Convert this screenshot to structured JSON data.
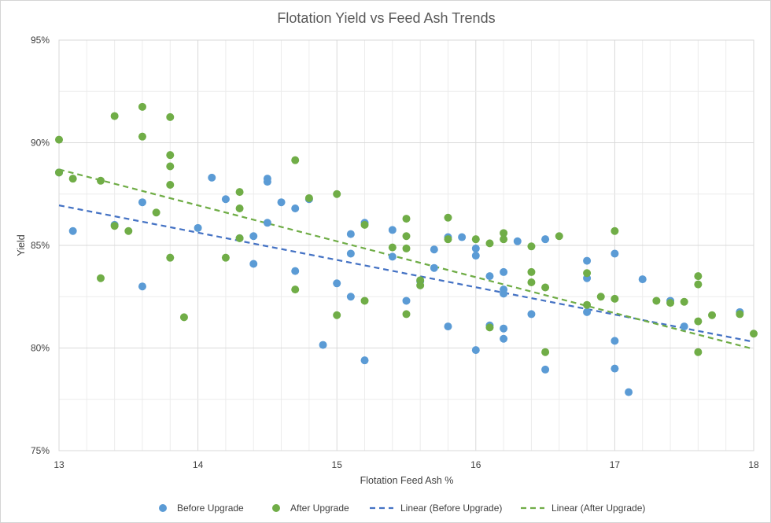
{
  "chart_data": {
    "type": "scatter",
    "title": "Flotation Yield vs Feed Ash Trends",
    "xlabel": "Flotation Feed Ash %",
    "ylabel": "Yield",
    "xlim": [
      13,
      18
    ],
    "ylim": [
      75,
      95
    ],
    "x_ticks": [
      13,
      14,
      15,
      16,
      17,
      18
    ],
    "x_tick_labels": [
      "13",
      "14",
      "15",
      "16",
      "17",
      "18"
    ],
    "y_ticks": [
      75,
      80,
      85,
      90,
      95
    ],
    "y_tick_labels": [
      "75%",
      "80%",
      "85%",
      "90%",
      "95%"
    ],
    "x_minor_gridline_step": 0.2,
    "y_minor_gridline_step": 2.5,
    "grid": true,
    "legend_position": "bottom",
    "series": [
      {
        "name": "Before Upgrade",
        "kind": "points",
        "color": "#5b9bd5",
        "points": [
          [
            13.0,
            88.55
          ],
          [
            13.1,
            85.7
          ],
          [
            13.4,
            86.0
          ],
          [
            13.6,
            87.1
          ],
          [
            13.6,
            83.0
          ],
          [
            14.0,
            85.85
          ],
          [
            14.1,
            88.3
          ],
          [
            14.2,
            87.25
          ],
          [
            14.3,
            85.35
          ],
          [
            14.4,
            85.45
          ],
          [
            14.4,
            84.1
          ],
          [
            14.5,
            88.25
          ],
          [
            14.5,
            88.1
          ],
          [
            14.5,
            86.1
          ],
          [
            14.6,
            87.1
          ],
          [
            14.7,
            86.8
          ],
          [
            14.7,
            83.75
          ],
          [
            14.8,
            87.25
          ],
          [
            14.9,
            80.15
          ],
          [
            15.0,
            83.15
          ],
          [
            15.1,
            85.55
          ],
          [
            15.1,
            84.6
          ],
          [
            15.1,
            82.5
          ],
          [
            15.2,
            86.1
          ],
          [
            15.2,
            79.4
          ],
          [
            15.4,
            85.75
          ],
          [
            15.4,
            84.45
          ],
          [
            15.5,
            82.3
          ],
          [
            15.6,
            83.25
          ],
          [
            15.7,
            84.8
          ],
          [
            15.7,
            83.9
          ],
          [
            15.8,
            85.4
          ],
          [
            15.8,
            81.05
          ],
          [
            15.9,
            85.4
          ],
          [
            16.0,
            84.85
          ],
          [
            16.0,
            84.5
          ],
          [
            16.0,
            79.9
          ],
          [
            16.1,
            83.5
          ],
          [
            16.1,
            81.1
          ],
          [
            16.2,
            83.7
          ],
          [
            16.2,
            82.85
          ],
          [
            16.2,
            82.65
          ],
          [
            16.2,
            80.95
          ],
          [
            16.2,
            80.45
          ],
          [
            16.3,
            85.2
          ],
          [
            16.4,
            81.65
          ],
          [
            16.5,
            85.3
          ],
          [
            16.5,
            78.95
          ],
          [
            16.8,
            84.25
          ],
          [
            16.8,
            83.4
          ],
          [
            16.8,
            81.75
          ],
          [
            17.0,
            84.6
          ],
          [
            17.0,
            80.35
          ],
          [
            17.0,
            79.0
          ],
          [
            17.1,
            77.85
          ],
          [
            17.2,
            83.35
          ],
          [
            17.4,
            82.3
          ],
          [
            17.5,
            81.05
          ],
          [
            17.9,
            81.75
          ]
        ]
      },
      {
        "name": "After Upgrade",
        "kind": "points",
        "color": "#70ad47",
        "points": [
          [
            13.0,
            90.15
          ],
          [
            13.0,
            88.55
          ],
          [
            13.1,
            88.25
          ],
          [
            13.3,
            88.15
          ],
          [
            13.3,
            83.4
          ],
          [
            13.4,
            91.3
          ],
          [
            13.4,
            85.95
          ],
          [
            13.5,
            85.7
          ],
          [
            13.6,
            91.75
          ],
          [
            13.6,
            90.3
          ],
          [
            13.7,
            86.6
          ],
          [
            13.8,
            91.25
          ],
          [
            13.8,
            89.4
          ],
          [
            13.8,
            88.85
          ],
          [
            13.8,
            87.95
          ],
          [
            13.8,
            84.4
          ],
          [
            13.9,
            81.5
          ],
          [
            14.2,
            84.4
          ],
          [
            14.3,
            87.6
          ],
          [
            14.3,
            86.8
          ],
          [
            14.3,
            85.35
          ],
          [
            14.7,
            89.15
          ],
          [
            14.7,
            82.85
          ],
          [
            14.8,
            87.3
          ],
          [
            15.0,
            87.5
          ],
          [
            15.0,
            81.6
          ],
          [
            15.2,
            86.0
          ],
          [
            15.2,
            82.3
          ],
          [
            15.4,
            84.9
          ],
          [
            15.5,
            86.3
          ],
          [
            15.5,
            85.45
          ],
          [
            15.5,
            84.85
          ],
          [
            15.5,
            81.65
          ],
          [
            15.6,
            83.3
          ],
          [
            15.6,
            83.05
          ],
          [
            15.8,
            86.35
          ],
          [
            15.8,
            85.3
          ],
          [
            16.0,
            85.3
          ],
          [
            16.1,
            85.1
          ],
          [
            16.1,
            81.0
          ],
          [
            16.2,
            85.6
          ],
          [
            16.2,
            85.3
          ],
          [
            16.4,
            84.95
          ],
          [
            16.4,
            83.7
          ],
          [
            16.4,
            83.2
          ],
          [
            16.5,
            82.95
          ],
          [
            16.5,
            79.8
          ],
          [
            16.6,
            85.45
          ],
          [
            16.8,
            83.65
          ],
          [
            16.8,
            82.1
          ],
          [
            16.9,
            82.5
          ],
          [
            17.0,
            85.7
          ],
          [
            17.0,
            82.4
          ],
          [
            17.3,
            82.3
          ],
          [
            17.4,
            82.2
          ],
          [
            17.5,
            82.25
          ],
          [
            17.6,
            83.5
          ],
          [
            17.6,
            83.1
          ],
          [
            17.6,
            81.3
          ],
          [
            17.6,
            79.8
          ],
          [
            17.7,
            81.6
          ],
          [
            17.9,
            81.65
          ],
          [
            18.0,
            80.7
          ]
        ]
      },
      {
        "name": "Linear (Before Upgrade)",
        "kind": "trendline",
        "color": "#4472c4",
        "points": [
          [
            13.0,
            86.95
          ],
          [
            18.0,
            80.3
          ]
        ]
      },
      {
        "name": "Linear (After Upgrade)",
        "kind": "trendline",
        "color": "#70ad47",
        "points": [
          [
            13.0,
            88.7
          ],
          [
            18.0,
            79.95
          ]
        ]
      }
    ]
  }
}
